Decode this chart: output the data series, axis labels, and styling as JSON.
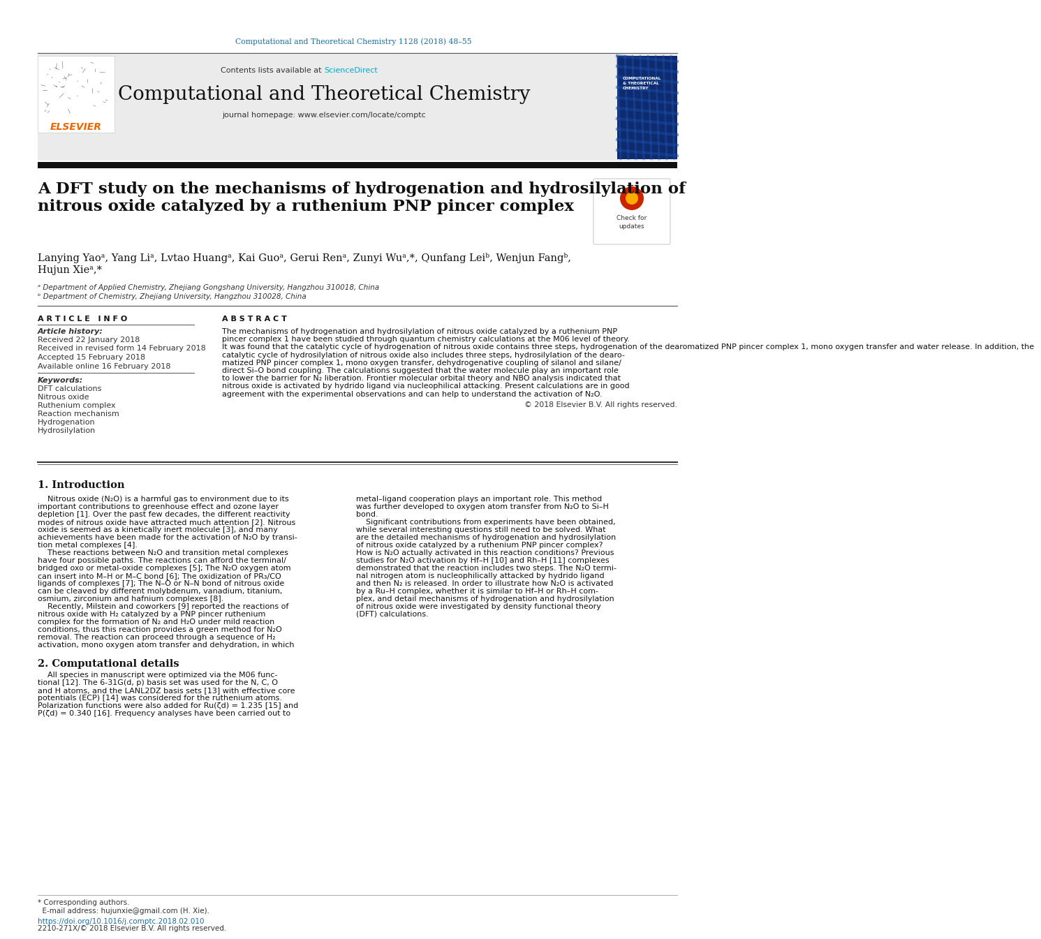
{
  "journal_ref": "Computational and Theoretical Chemistry 1128 (2018) 48–55",
  "journal_name": "Computational and Theoretical Chemistry",
  "journal_homepage": "journal homepage: www.elsevier.com/locate/comptc",
  "contents_text": "Contents lists available at ",
  "sciencedirect_text": "ScienceDirect",
  "title_line1": "A DFT study on the mechanisms of hydrogenation and hydrosilylation of",
  "title_line2": "nitrous oxide catalyzed by a ruthenium PNP pincer complex",
  "authors_line1": "Lanying Yaoᵃ, Yang Liᵃ, Lvtao Huangᵃ, Kai Guoᵃ, Gerui Renᵃ, Zunyi Wuᵃ,*, Qunfang Leiᵇ, Wenjun Fangᵇ,",
  "authors_line2": "Hujun Xieᵃ,*",
  "affil_a": "ᵃ Department of Applied Chemistry, Zhejiang Gongshang University, Hangzhou 310018, China",
  "affil_b": "ᵇ Department of Chemistry, Zhejiang University, Hangzhou 310028, China",
  "article_info_header": "A R T I C L E   I N F O",
  "abstract_header": "A B S T R A C T",
  "article_history_label": "Article history:",
  "received": "Received 22 January 2018",
  "received_revised": "Received in revised form 14 February 2018",
  "accepted": "Accepted 15 February 2018",
  "available": "Available online 16 February 2018",
  "keywords_label": "Keywords:",
  "keywords": [
    "DFT calculations",
    "Nitrous oxide",
    "Ruthenium complex",
    "Reaction mechanism",
    "Hydrogenation",
    "Hydrosilylation"
  ],
  "abstract_lines": [
    "The mechanisms of hydrogenation and hydrosilylation of nitrous oxide catalyzed by a ruthenium PNP",
    "pincer complex 1 have been studied through quantum chemistry calculations at the M06 level of theory.",
    "It was found that the catalytic cycle of hydrogenation of nitrous oxide contains three steps, hydrogenation of the dearomatized PNP pincer complex 1, mono oxygen transfer and water release. In addition, the",
    "catalytic cycle of hydrosilylation of nitrous oxide also includes three steps, hydrosilylation of the dearo-",
    "matized PNP pincer complex 1, mono oxygen transfer, dehydrogenative coupling of silanol and silane/",
    "direct Si–O bond coupling. The calculations suggested that the water molecule play an important role",
    "to lower the barrier for N₂ liberation. Frontier molecular orbital theory and NBO analysis indicated that",
    "nitrous oxide is activated by hydrido ligand via nucleophilical attacking. Present calculations are in good",
    "agreement with the experimental observations and can help to understand the activation of N₂O."
  ],
  "copyright": "© 2018 Elsevier B.V. All rights reserved.",
  "intro_header": "1. Introduction",
  "intro_col1": [
    "    Nitrous oxide (N₂O) is a harmful gas to environment due to its",
    "important contributions to greenhouse effect and ozone layer",
    "depletion [1]. Over the past few decades, the different reactivity",
    "modes of nitrous oxide have attracted much attention [2]. Nitrous",
    "oxide is seemed as a kinetically inert molecule [3], and many",
    "achievements have been made for the activation of N₂O by transi-",
    "tion metal complexes [4].",
    "    These reactions between N₂O and transition metal complexes",
    "have four possible paths. The reactions can afford the terminal/",
    "bridged oxo or metal-oxide complexes [5]; The N₂O oxygen atom",
    "can insert into M–H or M–C bond [6]; The oxidization of PR₃/CO",
    "ligands of complexes [7]; The N–O or N–N bond of nitrous oxide",
    "can be cleaved by different molybdenum, vanadium, titanium,",
    "osmium, zirconium and hafnium complexes [8].",
    "    Recently, Milstein and coworkers [9] reported the reactions of",
    "nitrous oxide with H₂ catalyzed by a PNP pincer ruthenium",
    "complex for the formation of N₂ and H₂O under mild reaction",
    "conditions, thus this reaction provides a green method for N₂O",
    "removal. The reaction can proceed through a sequence of H₂",
    "activation, mono oxygen atom transfer and dehydration, in which"
  ],
  "intro_col2": [
    "metal–ligand cooperation plays an important role. This method",
    "was further developed to oxygen atom transfer from N₂O to Si–H",
    "bond.",
    "    Significant contributions from experiments have been obtained,",
    "while several interesting questions still need to be solved. What",
    "are the detailed mechanisms of hydrogenation and hydrosilylation",
    "of nitrous oxide catalyzed by a ruthenium PNP pincer complex?",
    "How is N₂O actually activated in this reaction conditions? Previous",
    "studies for N₂O activation by Hf–H [10] and Rh–H [11] complexes",
    "demonstrated that the reaction includes two steps. The N₂O termi-",
    "nal nitrogen atom is nucleophilically attacked by hydrido ligand",
    "and then N₂ is released. In order to illustrate how N₂O is activated",
    "by a Ru–H complex, whether it is similar to Hf–H or Rh–H com-",
    "plex, and detail mechanisms of hydrogenation and hydrosilylation",
    "of nitrous oxide were investigated by density functional theory",
    "(DFT) calculations."
  ],
  "sec2_header": "2. Computational details",
  "sec2_col1": [
    "    All species in manuscript were optimized via the M06 func-",
    "tional [12]. The 6-31G(d, p) basis set was used for the N, C, O",
    "and H atoms, and the LANL2DZ basis sets [13] with effective core",
    "potentials (ECP) [14] was considered for the ruthenium atoms.",
    "Polarization functions were also added for Ru(ζd) = 1.235 [15] and",
    "P(ζd) = 0.340 [16]. Frequency analyses have been carried out to"
  ],
  "footnote1": "* Corresponding authors.",
  "footnote2": "  E-mail address: hujunxie@gmail.com (H. Xie).",
  "doi": "https://doi.org/10.1016/j.comptc.2018.02.010",
  "issn": "2210-271X/© 2018 Elsevier B.V. All rights reserved.",
  "header_bg": "#ebebeb",
  "black_bar": "#111111",
  "orange": "#EE6600",
  "blue": "#1a6fa0",
  "sdblue": "#00A9CE",
  "textblack": "#111111",
  "textgray": "#333333",
  "white": "#ffffff",
  "lightgray": "#cccccc"
}
